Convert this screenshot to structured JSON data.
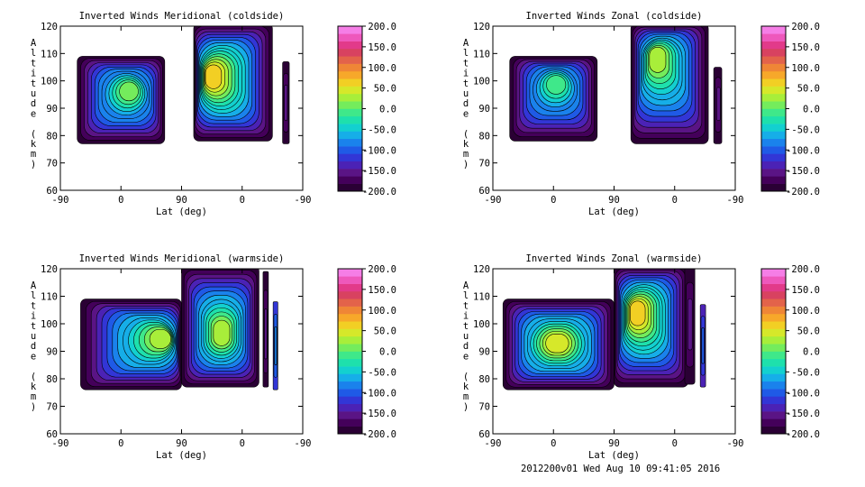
{
  "palette": [
    "#2a0034",
    "#44005a",
    "#5a1485",
    "#4b22b5",
    "#3236d6",
    "#1f5ae6",
    "#1a82ec",
    "#16aee8",
    "#13d0cf",
    "#1ee0ac",
    "#3fe88a",
    "#74ec5c",
    "#a8ee3a",
    "#d6e82a",
    "#f2cf24",
    "#f7a82a",
    "#ef8636",
    "#e3634a",
    "#d84260",
    "#e23a8a",
    "#ee58bc",
    "#f57ee6"
  ],
  "footer": "2012200v01 Wed Aug 10 09:41:05 2016",
  "chart_data": [
    {
      "type": "heatmap",
      "title": "Inverted Winds Meridional (coldside)",
      "xlabel": "Lat (deg)",
      "ylabel": "Altitude (km)",
      "xticks": [
        "-90",
        "0",
        "90",
        "0",
        "-90"
      ],
      "yticks": [
        "60",
        "70",
        "80",
        "90",
        "100",
        "110",
        "120"
      ],
      "ylim": [
        60,
        120
      ],
      "colorbar": {
        "ticks": [
          "200.0",
          "150.0",
          "100.0",
          "50.0",
          "0.0",
          "-50.0",
          "-100.0",
          "-150.0",
          "-200.0"
        ],
        "range": [
          -200,
          200
        ]
      },
      "regions": [
        {
          "lat_start": -65,
          "lat_end": 65,
          "alt_bottom": 77,
          "alt_top": 109,
          "peak_value": 25,
          "peak_lat": 15,
          "peak_alt": 97
        },
        {
          "lat_start": 108,
          "lat_end": 225,
          "alt_bottom": 78,
          "alt_top": 121,
          "peak_value": 80,
          "peak_lat": 130,
          "peak_alt": 102
        },
        {
          "lat_start": 240,
          "lat_end": 250,
          "alt_bottom": 77,
          "alt_top": 107,
          "peak_value": -200,
          "peak_lat": 245,
          "peak_alt": 92
        }
      ]
    },
    {
      "type": "heatmap",
      "title": "Inverted Winds Zonal (coldside)",
      "xlabel": "Lat (deg)",
      "ylabel": "Altitude (km)",
      "xticks": [
        "-90",
        "0",
        "90",
        "0",
        "-90"
      ],
      "yticks": [
        "60",
        "70",
        "80",
        "90",
        "100",
        "110",
        "120"
      ],
      "ylim": [
        60,
        120
      ],
      "colorbar": {
        "ticks": [
          "200.0",
          "150.0",
          "100.0",
          "50.0",
          "0.0",
          "-50.0",
          "-100.0",
          "-150.0",
          "-200.0"
        ],
        "range": [
          -200,
          200
        ]
      },
      "regions": [
        {
          "lat_start": -65,
          "lat_end": 65,
          "alt_bottom": 78,
          "alt_top": 109,
          "peak_value": 15,
          "peak_lat": 5,
          "peak_alt": 100
        },
        {
          "lat_start": 115,
          "lat_end": 230,
          "alt_bottom": 77,
          "alt_top": 121,
          "peak_value": 40,
          "peak_lat": 150,
          "peak_alt": 110
        },
        {
          "lat_start": 238,
          "lat_end": 250,
          "alt_bottom": 77,
          "alt_top": 105,
          "peak_value": -200,
          "peak_lat": 246,
          "peak_alt": 92
        }
      ]
    },
    {
      "type": "heatmap",
      "title": "Inverted Winds Meridional (warmside)",
      "xlabel": "Lat (deg)",
      "ylabel": "Altitude (km)",
      "xticks": [
        "-90",
        "0",
        "90",
        "0",
        "-90"
      ],
      "yticks": [
        "60",
        "70",
        "80",
        "90",
        "100",
        "110",
        "120"
      ],
      "ylim": [
        60,
        120
      ],
      "colorbar": {
        "ticks": [
          "200.0",
          "150.0",
          "100.0",
          "50.0",
          "0.0",
          "-50.0",
          "-100.0",
          "-150.0",
          "-200.0"
        ],
        "range": [
          -200,
          200
        ]
      },
      "regions": [
        {
          "lat_start": -60,
          "lat_end": 90,
          "alt_bottom": 76,
          "alt_top": 109,
          "peak_value": 45,
          "peak_lat": 70,
          "peak_alt": 95
        },
        {
          "lat_start": 90,
          "lat_end": 205,
          "alt_bottom": 77,
          "alt_top": 121,
          "peak_value": 40,
          "peak_lat": 150,
          "peak_alt": 96
        },
        {
          "lat_start": 211,
          "lat_end": 219,
          "alt_bottom": 77,
          "alt_top": 119,
          "peak_value": -200,
          "peak_lat": 215,
          "peak_alt": 95
        },
        {
          "lat_start": 226,
          "lat_end": 233,
          "alt_bottom": 76,
          "alt_top": 108,
          "peak_value": -120,
          "peak_lat": 230,
          "peak_alt": 92
        }
      ]
    },
    {
      "type": "heatmap",
      "title": "Inverted Winds Zonal (warmside)",
      "xlabel": "Lat (deg)",
      "ylabel": "Altitude (km)",
      "xticks": [
        "-90",
        "0",
        "90",
        "0",
        "-90"
      ],
      "yticks": [
        "60",
        "70",
        "80",
        "90",
        "100",
        "110",
        "120"
      ],
      "ylim": [
        60,
        120
      ],
      "colorbar": {
        "ticks": [
          "200.0",
          "150.0",
          "100.0",
          "50.0",
          "0.0",
          "-50.0",
          "-100.0",
          "-150.0",
          "-200.0"
        ],
        "range": [
          -200,
          200
        ]
      },
      "regions": [
        {
          "lat_start": -75,
          "lat_end": 90,
          "alt_bottom": 76,
          "alt_top": 109,
          "peak_value": 70,
          "peak_lat": 5,
          "peak_alt": 93
        },
        {
          "lat_start": 90,
          "lat_end": 200,
          "alt_bottom": 77,
          "alt_top": 121,
          "peak_value": 90,
          "peak_lat": 120,
          "peak_alt": 105
        },
        {
          "lat_start": 195,
          "lat_end": 210,
          "alt_bottom": 78,
          "alt_top": 121,
          "peak_value": -200,
          "peak_lat": 203,
          "peak_alt": 100
        },
        {
          "lat_start": 218,
          "lat_end": 226,
          "alt_bottom": 77,
          "alt_top": 107,
          "peak_value": -130,
          "peak_lat": 222,
          "peak_alt": 92
        }
      ]
    }
  ]
}
